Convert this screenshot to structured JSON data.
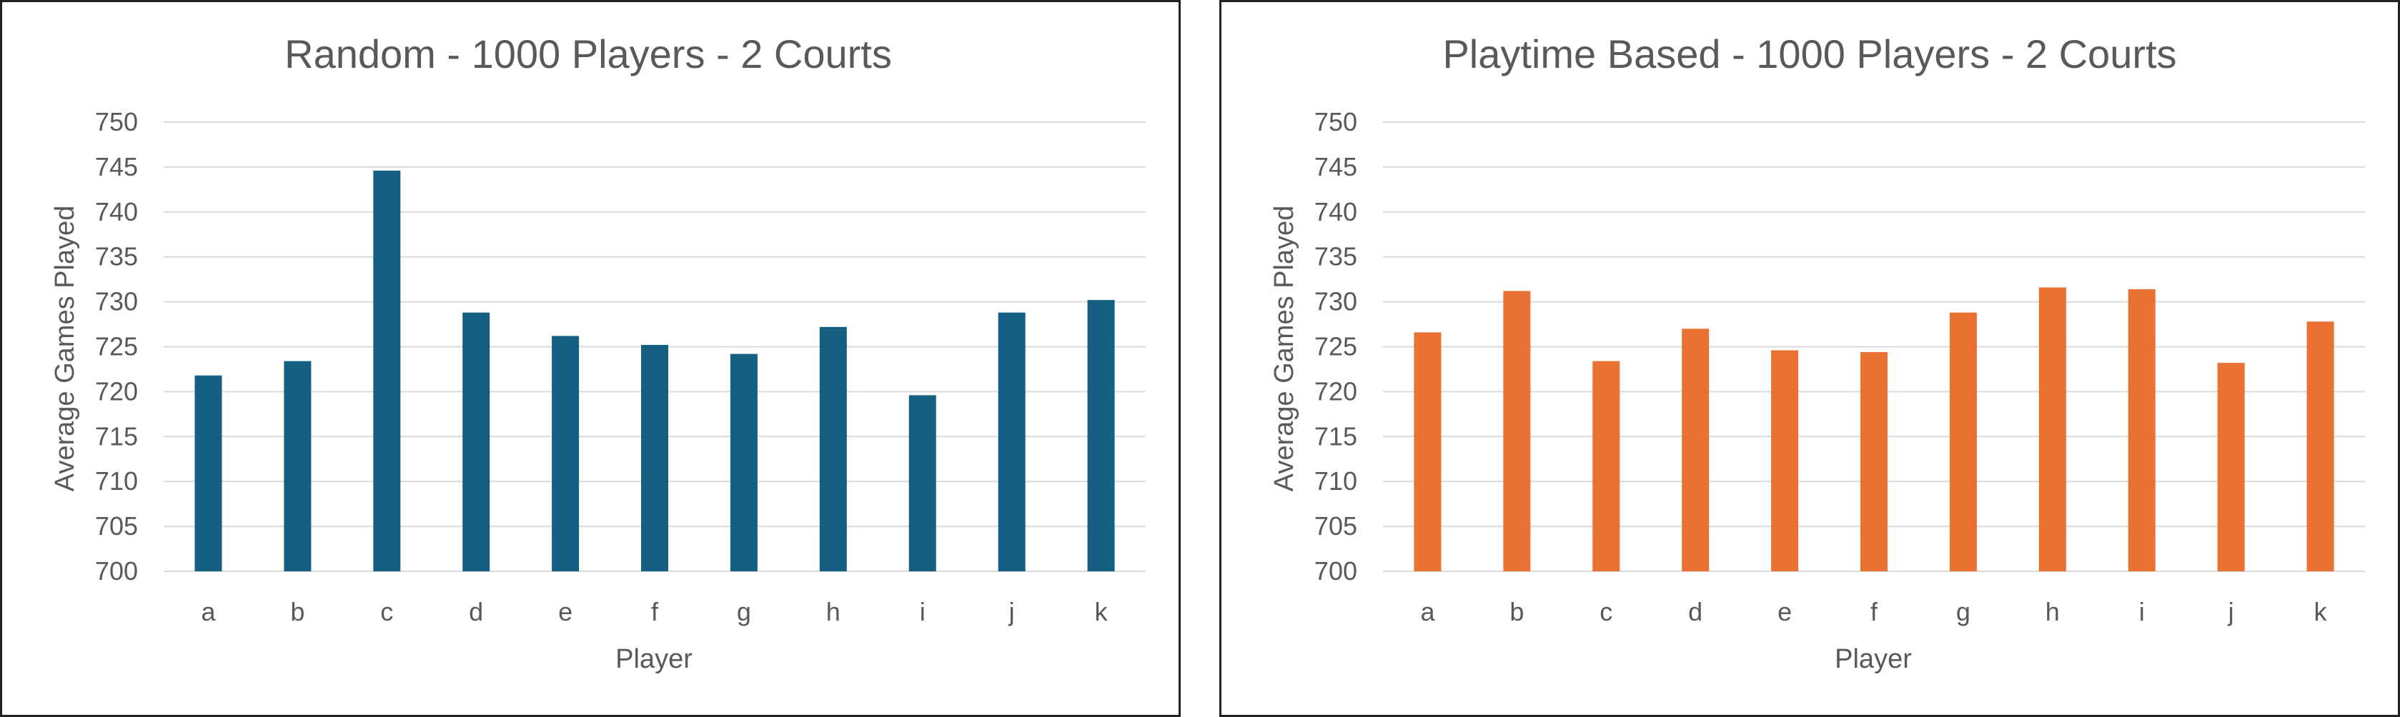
{
  "chart_data": [
    {
      "type": "bar",
      "title": "Random - 1000 Players - 2 Courts",
      "xlabel": "Player",
      "ylabel": "Average Games Played",
      "categories": [
        "a",
        "b",
        "c",
        "d",
        "e",
        "f",
        "g",
        "h",
        "i",
        "j",
        "k"
      ],
      "values": [
        721.8,
        723.4,
        744.6,
        728.8,
        726.2,
        725.2,
        724.2,
        727.2,
        719.6,
        728.8,
        730.2
      ],
      "ylim": [
        700,
        750
      ],
      "yticks": [
        "700",
        "705",
        "710",
        "715",
        "720",
        "725",
        "730",
        "735",
        "740",
        "745",
        "750"
      ],
      "grid": true,
      "color": "#156082"
    },
    {
      "type": "bar",
      "title": "Playtime Based - 1000 Players - 2 Courts",
      "xlabel": "Player",
      "ylabel": "Average Games Played",
      "categories": [
        "a",
        "b",
        "c",
        "d",
        "e",
        "f",
        "g",
        "h",
        "i",
        "j",
        "k"
      ],
      "values": [
        726.6,
        731.2,
        723.4,
        727.0,
        724.6,
        724.4,
        728.8,
        731.6,
        731.4,
        723.2,
        727.8
      ],
      "ylim": [
        700,
        750
      ],
      "yticks": [
        "700",
        "705",
        "710",
        "715",
        "720",
        "725",
        "730",
        "735",
        "740",
        "745",
        "750"
      ],
      "grid": true,
      "color": "#E97132"
    }
  ]
}
